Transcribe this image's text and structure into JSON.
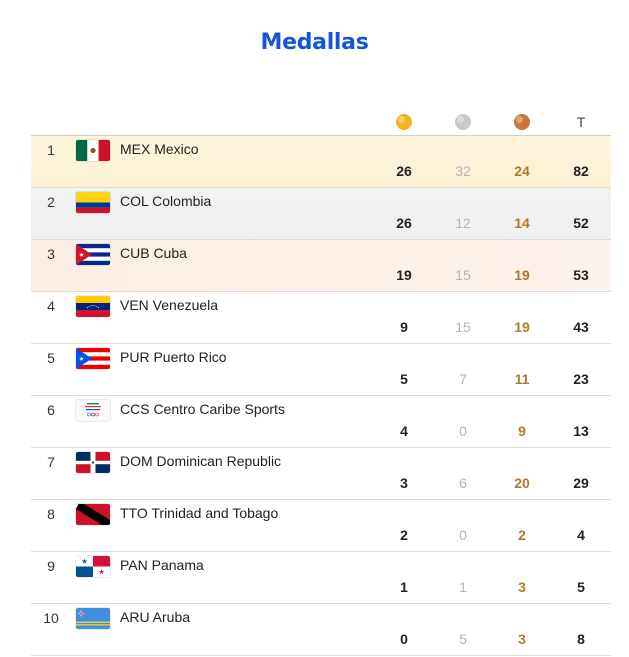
{
  "page": {
    "title": "Medallas"
  },
  "header": {
    "gold_icon": "gold-medal-icon",
    "silver_icon": "silver-medal-icon",
    "bronze_icon": "bronze-medal-icon",
    "total_label": "T",
    "colors": {
      "gold": "#f0b323",
      "silver": "#c9c9c9",
      "bronze": "#c7763a",
      "title": "#1555d6"
    }
  },
  "rows": [
    {
      "rank": "1",
      "country": "MEX Mexico",
      "gold": "26",
      "silver": "32",
      "bronze": "24",
      "total": "82",
      "flag": "mexico-flag-icon"
    },
    {
      "rank": "2",
      "country": "COL Colombia",
      "gold": "26",
      "silver": "12",
      "bronze": "14",
      "total": "52",
      "flag": "colombia-flag-icon"
    },
    {
      "rank": "3",
      "country": "CUB Cuba",
      "gold": "19",
      "silver": "15",
      "bronze": "19",
      "total": "53",
      "flag": "cuba-flag-icon"
    },
    {
      "rank": "4",
      "country": "VEN Venezuela",
      "gold": "9",
      "silver": "15",
      "bronze": "19",
      "total": "43",
      "flag": "venezuela-flag-icon"
    },
    {
      "rank": "5",
      "country": "PUR Puerto Rico",
      "gold": "5",
      "silver": "7",
      "bronze": "11",
      "total": "23",
      "flag": "puerto-rico-flag-icon"
    },
    {
      "rank": "6",
      "country": "CCS Centro Caribe Sports",
      "gold": "4",
      "silver": "0",
      "bronze": "9",
      "total": "13",
      "flag": "centro-caribe-sports-logo-icon"
    },
    {
      "rank": "7",
      "country": "DOM Dominican Republic",
      "gold": "3",
      "silver": "6",
      "bronze": "20",
      "total": "29",
      "flag": "dominican-republic-flag-icon"
    },
    {
      "rank": "8",
      "country": "TTO Trinidad and Tobago",
      "gold": "2",
      "silver": "0",
      "bronze": "2",
      "total": "4",
      "flag": "trinidad-and-tobago-flag-icon"
    },
    {
      "rank": "9",
      "country": "PAN Panama",
      "gold": "1",
      "silver": "1",
      "bronze": "3",
      "total": "5",
      "flag": "panama-flag-icon"
    },
    {
      "rank": "10",
      "country": "ARU Aruba",
      "gold": "0",
      "silver": "5",
      "bronze": "3",
      "total": "8",
      "flag": "aruba-flag-icon"
    }
  ]
}
